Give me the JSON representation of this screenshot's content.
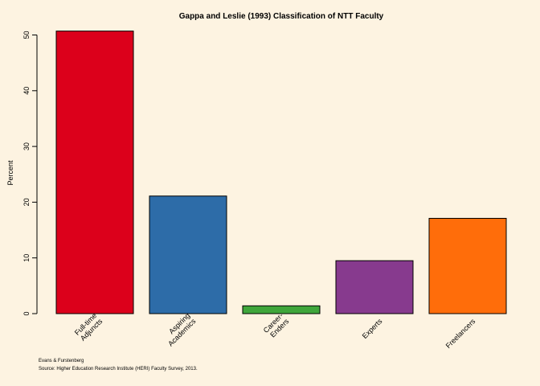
{
  "chart_data": {
    "type": "bar",
    "title": "Gappa and Leslie (1993) Classification of NTT Faculty",
    "ylabel": "Percent",
    "xlabel": "",
    "categories": [
      [
        "Full-time",
        "Adjuncts"
      ],
      [
        "Aspiring",
        "Academics"
      ],
      [
        "Career-",
        "Enders"
      ],
      [
        "Experts"
      ],
      [
        "Freelancers"
      ]
    ],
    "values": [
      50.7,
      21.1,
      1.4,
      9.5,
      17.1
    ],
    "colors": [
      "#dc001b",
      "#2d6ca8",
      "#3fa63b",
      "#873a8e",
      "#ff6d0a"
    ],
    "yticks": [
      0,
      10,
      20,
      30,
      40,
      50
    ],
    "ylim": [
      0,
      50.7
    ],
    "grid": false,
    "legend": "none"
  },
  "notes": {
    "author": "Evans & Furstenberg",
    "source": "Source: Higher Education Research Institute (HERI) Faculty Survey, 2013."
  }
}
